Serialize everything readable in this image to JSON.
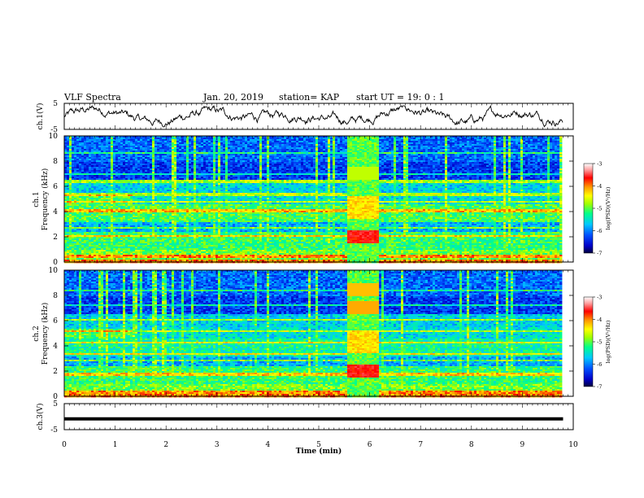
{
  "header": {
    "title": "VLF Spectra",
    "date": "Jan. 20, 2019",
    "station": "station= KAP",
    "start": "start  UT =   19: 0  : 1"
  },
  "chart_data": [
    {
      "type": "line",
      "name": "ch1-waveform",
      "ylabel": "ch.1(V)",
      "ylim": [
        -5,
        5
      ],
      "yticks": [
        "5",
        "-5"
      ],
      "xlim": [
        0,
        10
      ]
    },
    {
      "type": "heatmap",
      "name": "ch1-spectrogram",
      "ylabel_line1": "ch.1",
      "ylabel_line2": "Frequency  (kHz)",
      "ylim": [
        0,
        10
      ],
      "yticks": [
        "0",
        "2",
        "4",
        "6",
        "8",
        "10"
      ],
      "xlim": [
        0,
        10
      ],
      "data_end_min": 9.8,
      "burst_window_min": [
        5.55,
        6.15
      ],
      "colorbar": {
        "label": "log(PSD)(V²/Hz)",
        "range": [
          -7,
          -3
        ],
        "ticks": [
          "-3",
          "-4",
          "-5",
          "-6",
          "-7"
        ]
      }
    },
    {
      "type": "heatmap",
      "name": "ch2-spectrogram",
      "ylabel_line1": "ch.2",
      "ylabel_line2": "Frequency  (kHz)",
      "ylim": [
        0,
        10
      ],
      "yticks": [
        "0",
        "2",
        "4",
        "6",
        "8",
        "10"
      ],
      "xlim": [
        0,
        10
      ],
      "data_end_min": 9.8,
      "burst_window_min": [
        5.55,
        6.15
      ],
      "colorbar": {
        "label": "log(PSD)(V²/Hz)",
        "range": [
          -7,
          -3
        ],
        "ticks": [
          "-3",
          "-4",
          "-5",
          "-6",
          "-7"
        ]
      }
    },
    {
      "type": "line",
      "name": "ch3-waveform",
      "ylabel": "ch.3(V)",
      "ylim": [
        -5,
        5
      ],
      "yticks": [
        "5",
        "-5"
      ],
      "xlim": [
        0,
        10
      ],
      "level_v": -1
    }
  ],
  "xaxis": {
    "label": "Time  (min)",
    "ticks": [
      "0",
      "1",
      "2",
      "3",
      "4",
      "5",
      "6",
      "7",
      "8",
      "9",
      "10"
    ]
  },
  "colors": {
    "colormap": [
      "#00003c",
      "#0000c8",
      "#0050ff",
      "#00c8ff",
      "#00ff8c",
      "#a0ff00",
      "#ffff00",
      "#ff9600",
      "#ff0000",
      "#ffa0a0",
      "#ffffff"
    ]
  }
}
